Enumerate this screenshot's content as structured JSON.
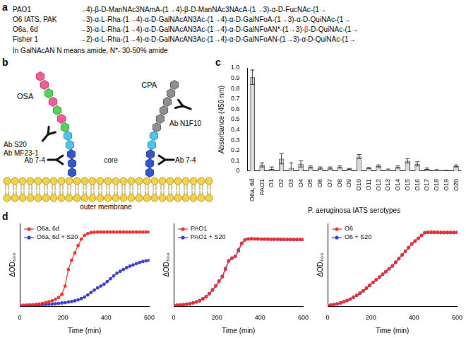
{
  "panel_a": {
    "panel": "a",
    "rows": [
      {
        "name": "PAO1",
        "structure": [
          {
            "text": "→4)-β-D-ManNAc3NAmA-(1→4)-β-D-ManNAc3NAcA-(1→3)-α-D-FucNAc-(1→"
          }
        ]
      },
      {
        "name": "O6 IATS, PAK",
        "structure": [
          {
            "text": "→3)-α-L-Rha-(1→4)-α-D-GalNAcAN3Ac-(1→4)-α-D-GalNFoA-(1→3)-α-D-QuiNAc-(1→"
          }
        ]
      },
      {
        "name": "O6a, 6d",
        "structure": [
          {
            "text": "→3)-α-L-Rha-(1→4)-α-D-GalNAcAN3Ac-(1→4)-α-D-GalNFoAN*-(1→3)-"
          },
          {
            "text": "β",
            "color": "#e02020"
          },
          {
            "text": "-D-QuiNAc-(1→"
          }
        ]
      },
      {
        "name": "Fisher 1",
        "structure": [
          {
            "text": "→2)-α-L-Rha-(1→4)-α-D-GalNAcAN3Ac-(1→4)-α-D-GalNFoAN-(1→3)-α-D-QuiNAc-(1→"
          }
        ]
      }
    ],
    "note": "In GalNAcAN N means amide, N*- 30-50% amide"
  },
  "panel_b": {
    "panel": "b",
    "osa": "OSA",
    "cpa": "CPA",
    "core": "core",
    "membrane": "outer membrane",
    "antibodies": [
      [
        "Ab S20",
        "Ab MF23-1"
      ],
      [
        "Ab N1F10"
      ],
      [
        "Ab 7-4"
      ],
      [
        "Ab 7-4"
      ]
    ]
  },
  "chart_data": [
    {
      "panel": "c",
      "type": "bar",
      "categories": [
        "O6a, 6d",
        "PAO1",
        "O1",
        "O2",
        "O3",
        "O4",
        "O5",
        "O6",
        "O7",
        "O8",
        "O9",
        "O10",
        "O11",
        "O12",
        "O13",
        "O14",
        "O15",
        "O16",
        "O17",
        "O18",
        "O19",
        "O20"
      ],
      "values": [
        0.91,
        0.06,
        0.02,
        0.12,
        0.03,
        0.07,
        0.04,
        0.03,
        0.03,
        0.04,
        0.02,
        0.14,
        0.03,
        0.05,
        0.01,
        0.04,
        0.1,
        0.07,
        0.02,
        0.005,
        0.003,
        0.05
      ],
      "errors": [
        0.07,
        0.02,
        0.02,
        0.05,
        0.05,
        0.03,
        0.01,
        0.01,
        0.01,
        0.01,
        0.005,
        0.02,
        0.005,
        0.01,
        0.01,
        0.01,
        0.02,
        0.02,
        0.01,
        0.01,
        0.005,
        0.01
      ],
      "color": "#d9d9d9",
      "ylim": [
        0,
        1
      ],
      "yticks": [
        0,
        0.1,
        0.2,
        0.3,
        0.4,
        0.5,
        0.6,
        0.7,
        0.8,
        0.9,
        {
          "value": 1,
          "label": "1.0"
        }
      ],
      "y_label": "Absorbance (450 nm)",
      "x_label": "P. aeruginosa IATS serotypes",
      "grid": false
    },
    {
      "panel": "d",
      "type": "line",
      "x": [
        0,
        15,
        30,
        45,
        60,
        75,
        90,
        105,
        120,
        135,
        150,
        165,
        180,
        195,
        210,
        225,
        240,
        255,
        270,
        285,
        300,
        315,
        330,
        345,
        360,
        375,
        390,
        405,
        420,
        435,
        450,
        465,
        480,
        495,
        510,
        525,
        540,
        555,
        570,
        585,
        600
      ],
      "series": [
        {
          "name": "O6a, 6d",
          "color": "#e8302c",
          "marker": "circle",
          "values": [
            0.005,
            0.006,
            0.007,
            0.008,
            0.009,
            0.011,
            0.013,
            0.016,
            0.02,
            0.025,
            0.03,
            0.038,
            0.048,
            0.065,
            0.11,
            0.2,
            0.25,
            0.29,
            0.33,
            0.365,
            0.385,
            0.395,
            0.4,
            0.402,
            0.403,
            0.403,
            0.403,
            0.403,
            0.403,
            0.403,
            0.403,
            0.403,
            0.403,
            0.403,
            0.403,
            0.403,
            0.403,
            0.403,
            0.403,
            0.403,
            0.403
          ]
        },
        {
          "name": "O6a, 6d + S20",
          "color": "#3a3acb",
          "marker": "circle",
          "values": [
            0.002,
            0.003,
            0.004,
            0.005,
            0.006,
            0.007,
            0.008,
            0.009,
            0.01,
            0.011,
            0.012,
            0.014,
            0.016,
            0.018,
            0.02,
            0.023,
            0.026,
            0.03,
            0.035,
            0.042,
            0.05,
            0.062,
            0.075,
            0.088,
            0.1,
            0.11,
            0.12,
            0.135,
            0.15,
            0.165,
            0.18,
            0.19,
            0.2,
            0.21,
            0.218,
            0.225,
            0.232,
            0.238,
            0.243,
            0.247,
            0.25
          ]
        }
      ],
      "xlim": [
        0,
        600
      ],
      "xticks": [
        0,
        200,
        400,
        600
      ],
      "ylim": [
        0,
        0.45
      ],
      "x_label": "Time (min)",
      "y_label": "ΔOD₆₀₀",
      "legend": "upper left",
      "grid": false,
      "tick_labels": "x"
    },
    {
      "type": "line",
      "x": [
        0,
        15,
        30,
        45,
        60,
        75,
        90,
        105,
        120,
        135,
        150,
        165,
        180,
        195,
        210,
        225,
        240,
        255,
        270,
        285,
        300,
        315,
        330,
        345,
        360,
        375,
        390,
        405,
        420,
        435,
        450,
        465,
        480,
        495,
        510,
        525,
        540,
        555,
        570,
        585,
        600
      ],
      "series": [
        {
          "name": "PAO1",
          "color": "#e8302c",
          "marker": "circle",
          "values": [
            0.005,
            0.006,
            0.007,
            0.009,
            0.011,
            0.014,
            0.018,
            0.023,
            0.03,
            0.04,
            0.052,
            0.068,
            0.088,
            0.11,
            0.135,
            0.16,
            0.2,
            0.245,
            0.26,
            0.27,
            0.3,
            0.34,
            0.36,
            0.365,
            0.366,
            0.366,
            0.365,
            0.365,
            0.365,
            0.364,
            0.364,
            0.364,
            0.364,
            0.364,
            0.363,
            0.363,
            0.363,
            0.363,
            0.363,
            0.363,
            0.363
          ]
        },
        {
          "name": "PAO1 + S20",
          "color": "#3a3acb",
          "marker": "circle",
          "values": [
            0.004,
            0.006,
            0.008,
            0.009,
            0.012,
            0.014,
            0.019,
            0.024,
            0.031,
            0.041,
            0.053,
            0.069,
            0.09,
            0.112,
            0.137,
            0.162,
            0.205,
            0.248,
            0.262,
            0.272,
            0.305,
            0.343,
            0.361,
            0.366,
            0.367,
            0.366,
            0.366,
            0.365,
            0.365,
            0.365,
            0.364,
            0.364,
            0.364,
            0.363,
            0.363,
            0.363,
            0.363,
            0.362,
            0.362,
            0.362,
            0.362
          ]
        }
      ],
      "xlim": [
        0,
        600
      ],
      "xticks": [
        0,
        200,
        400,
        600
      ],
      "ylim": [
        0,
        0.45
      ],
      "x_label": "Time (min)",
      "y_label": "ΔOD₆₀₀",
      "legend": "upper left",
      "grid": false,
      "tick_labels": "x"
    },
    {
      "type": "line",
      "x": [
        0,
        15,
        30,
        45,
        60,
        75,
        90,
        105,
        120,
        135,
        150,
        165,
        180,
        195,
        210,
        225,
        240,
        255,
        270,
        285,
        300,
        315,
        330,
        345,
        360,
        375,
        390,
        405,
        420,
        435,
        450,
        465,
        480,
        495,
        510,
        525,
        540,
        555,
        570,
        585,
        600
      ],
      "series": [
        {
          "name": "O6",
          "color": "#e8302c",
          "marker": "circle",
          "values": [
            0.005,
            0.007,
            0.01,
            0.014,
            0.019,
            0.025,
            0.032,
            0.04,
            0.05,
            0.06,
            0.072,
            0.085,
            0.1,
            0.115,
            0.13,
            0.145,
            0.16,
            0.175,
            0.19,
            0.205,
            0.22,
            0.24,
            0.26,
            0.28,
            0.3,
            0.32,
            0.34,
            0.355,
            0.37,
            0.385,
            0.4,
            0.402,
            0.402,
            0.402,
            0.402,
            0.401,
            0.401,
            0.401,
            0.401,
            0.401,
            0.401
          ]
        },
        {
          "name": "O6 + S20",
          "color": "#3a3acb",
          "marker": "circle",
          "values": [
            0.004,
            0.007,
            0.01,
            0.013,
            0.018,
            0.024,
            0.031,
            0.039,
            0.049,
            0.059,
            0.07,
            0.083,
            0.098,
            0.113,
            0.128,
            0.143,
            0.158,
            0.173,
            0.188,
            0.203,
            0.218,
            0.238,
            0.258,
            0.278,
            0.298,
            0.318,
            0.338,
            0.353,
            0.368,
            0.385,
            0.399,
            0.401,
            0.401,
            0.401,
            0.401,
            0.4,
            0.4,
            0.4,
            0.4,
            0.4,
            0.4
          ]
        }
      ],
      "xlim": [
        0,
        600
      ],
      "xticks": [
        0,
        200,
        400,
        600
      ],
      "ylim": [
        0,
        0.45
      ],
      "x_label": "Time (min)",
      "y_label": "ΔOD₆₀₀",
      "legend": "upper left",
      "grid": false,
      "tick_labels": "x"
    }
  ]
}
